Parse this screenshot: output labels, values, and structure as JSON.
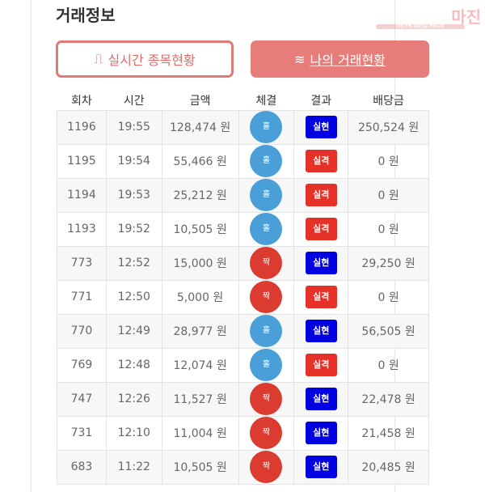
{
  "title": "거래정보",
  "logo": {
    "text": "마진",
    "sub": "마진거래 검증전문 커뮤니티"
  },
  "buttons": {
    "realtime": "실시간 종목현황",
    "mine": "나의 거래현황"
  },
  "columns": [
    "회차",
    "시간",
    "금액",
    "체결",
    "결과",
    "배당금"
  ],
  "colors": {
    "hol": "#4a9fd8",
    "jjak": "#dc3b30",
    "win": "#0000e0",
    "lose": "#e53128"
  },
  "rows": [
    {
      "round": "1196",
      "time": "19:55",
      "amount": "128,474 원",
      "pick": "홀",
      "result": "실현",
      "payout": "250,524 원"
    },
    {
      "round": "1195",
      "time": "19:54",
      "amount": "55,466 원",
      "pick": "홀",
      "result": "실격",
      "payout": "0 원"
    },
    {
      "round": "1194",
      "time": "19:53",
      "amount": "25,212 원",
      "pick": "홀",
      "result": "실격",
      "payout": "0 원"
    },
    {
      "round": "1193",
      "time": "19:52",
      "amount": "10,505 원",
      "pick": "홀",
      "result": "실격",
      "payout": "0 원"
    },
    {
      "round": "773",
      "time": "12:52",
      "amount": "15,000 원",
      "pick": "짝",
      "result": "실현",
      "payout": "29,250 원"
    },
    {
      "round": "771",
      "time": "12:50",
      "amount": "5,000 원",
      "pick": "짝",
      "result": "실격",
      "payout": "0 원"
    },
    {
      "round": "770",
      "time": "12:49",
      "amount": "28,977 원",
      "pick": "홀",
      "result": "실현",
      "payout": "56,505 원"
    },
    {
      "round": "769",
      "time": "12:48",
      "amount": "12,074 원",
      "pick": "홀",
      "result": "실격",
      "payout": "0 원"
    },
    {
      "round": "747",
      "time": "12:26",
      "amount": "11,527 원",
      "pick": "짝",
      "result": "실현",
      "payout": "22,478 원"
    },
    {
      "round": "731",
      "time": "12:10",
      "amount": "11,004 원",
      "pick": "짝",
      "result": "실현",
      "payout": "21,458 원"
    },
    {
      "round": "683",
      "time": "11:22",
      "amount": "10,505 원",
      "pick": "짝",
      "result": "실현",
      "payout": "20,485 원"
    }
  ]
}
